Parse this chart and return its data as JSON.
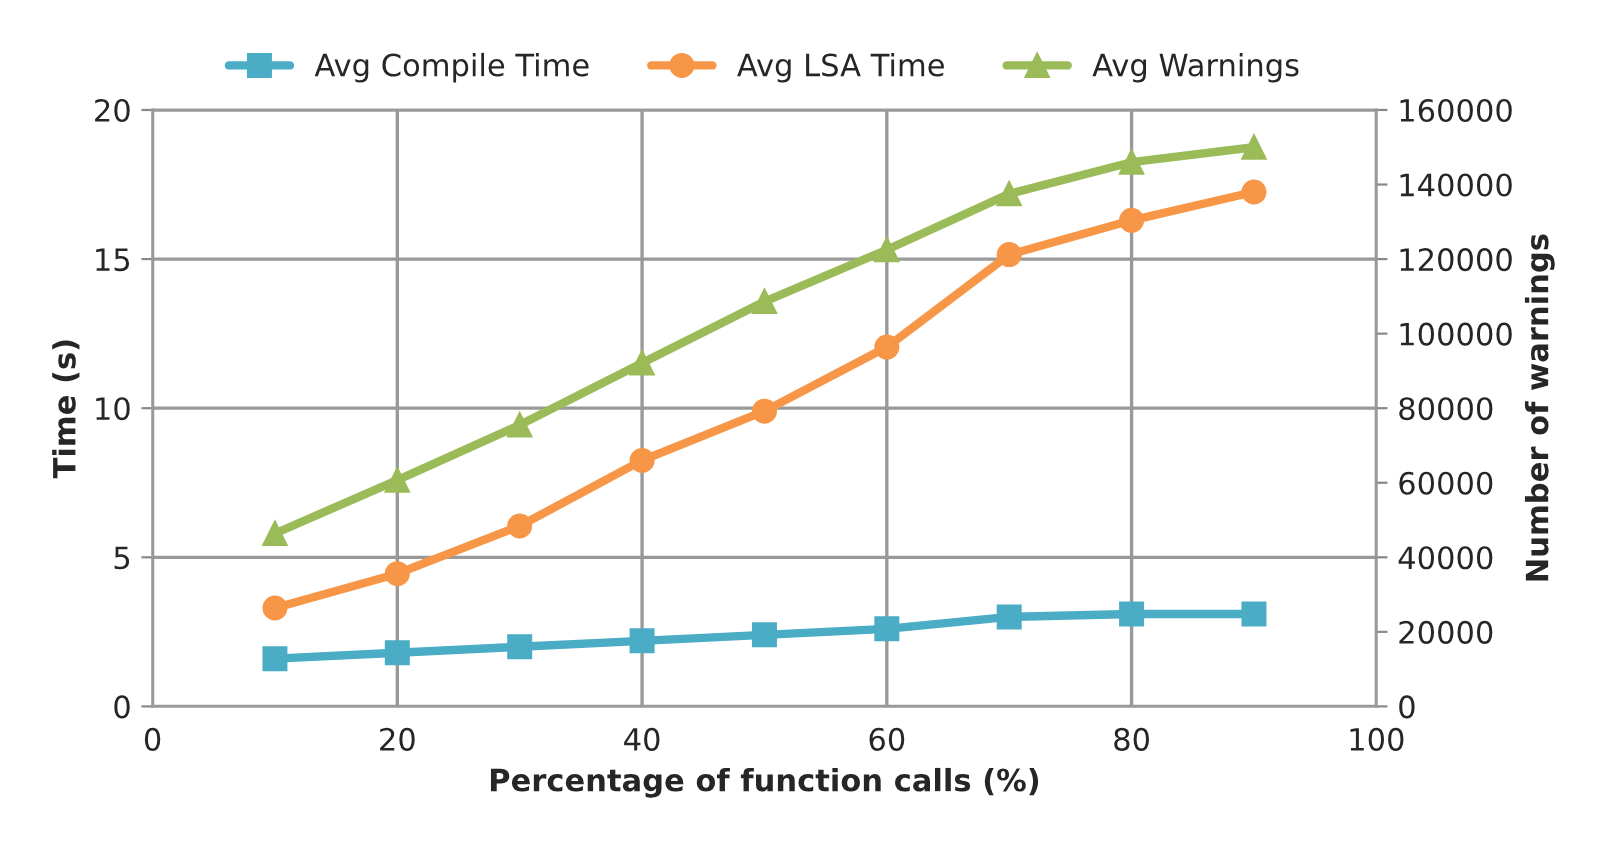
{
  "chart_data": {
    "type": "line",
    "xlabel": "Percentage of function calls (%)",
    "ylabel": "Time (s)",
    "y2label": "Number of warnings",
    "x": [
      10,
      20,
      30,
      40,
      50,
      60,
      70,
      80,
      90
    ],
    "series": [
      {
        "name": "Avg Compile Time",
        "color": "#4bacc6",
        "marker": "square",
        "values": [
          1.6,
          1.8,
          2.0,
          2.2,
          2.4,
          2.6,
          3.0,
          3.1,
          3.1
        ]
      },
      {
        "name": "Avg LSA Time",
        "color": "#f79646",
        "marker": "circle",
        "values": [
          3.3,
          4.45,
          6.05,
          8.25,
          9.9,
          12.05,
          15.15,
          16.3,
          17.25
        ]
      },
      {
        "name": "Avg Warnings",
        "color": "#9bbb59",
        "marker": "triangle",
        "axis": "y2",
        "values": [
          46400,
          60700,
          75500,
          92100,
          108600,
          122500,
          137500,
          146000,
          150000
        ]
      }
    ],
    "xlim": [
      0,
      100
    ],
    "xticks": [
      0,
      20,
      40,
      60,
      80,
      100
    ],
    "ylim": [
      0,
      20
    ],
    "yticks": [
      0,
      5,
      10,
      15,
      20
    ],
    "y2lim": [
      0,
      160000
    ],
    "y2ticks": [
      0,
      20000,
      40000,
      60000,
      80000,
      100000,
      120000,
      140000,
      160000
    ],
    "grid": true,
    "legend": "top",
    "line_style": "solid"
  }
}
